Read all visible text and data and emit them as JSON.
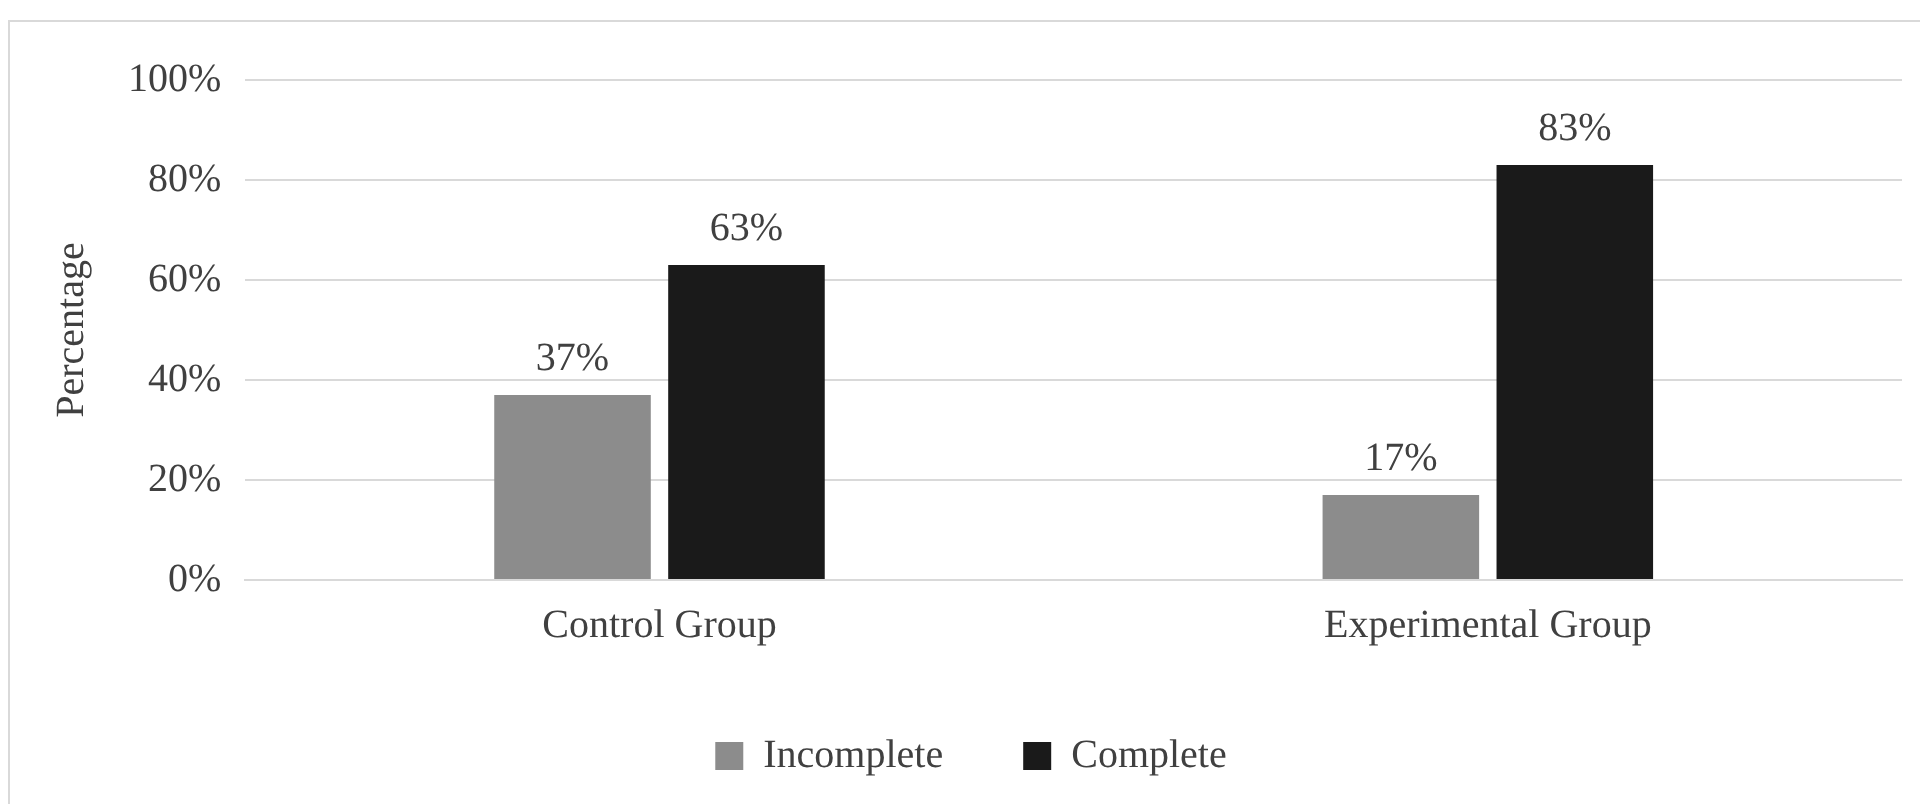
{
  "chart_data": {
    "type": "bar",
    "ylabel": "Percentage",
    "categories": [
      "Control Group",
      "Experimental Group"
    ],
    "series": [
      {
        "name": "Incomplete",
        "color": "#8c8c8c",
        "values": [
          37,
          17
        ],
        "value_labels": [
          "37%",
          "17%"
        ]
      },
      {
        "name": "Complete",
        "color": "#1a1a1a",
        "values": [
          63,
          83
        ],
        "value_labels": [
          "63%",
          "83%"
        ]
      }
    ],
    "ylim": [
      0,
      100
    ],
    "yticks": [
      {
        "value": 0,
        "label": "0%"
      },
      {
        "value": 20,
        "label": "20%"
      },
      {
        "value": 40,
        "label": "40%"
      },
      {
        "value": 60,
        "label": "60%"
      },
      {
        "value": 80,
        "label": "80%"
      },
      {
        "value": 100,
        "label": "100%"
      }
    ],
    "grid": "y",
    "legend": "bottom"
  }
}
